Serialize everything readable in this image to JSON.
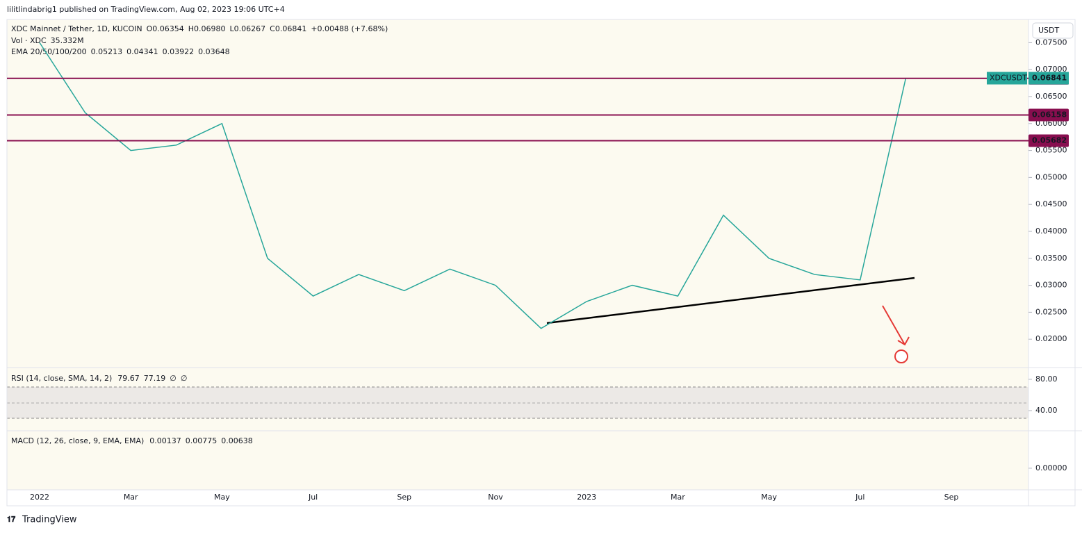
{
  "header": "lilitlindabrig1 published on TradingView.com, Aug 02, 2023 19:06 UTC+4",
  "legend": {
    "symbol": "XDC Mainnet / Tether, 1D, KUCOIN",
    "ohlc": [
      "O0.06354",
      "H0.06980",
      "L0.06267",
      "C0.06841"
    ],
    "change": "+0.00488 (+7.68%)",
    "volume_label": "Vol · XDC",
    "volume": "35.332M",
    "ema_label": "EMA 20/50/100/200",
    "ema_values": [
      {
        "text": "0.05213",
        "color": "#f23645"
      },
      {
        "text": "0.04341",
        "color": "#ff9800"
      },
      {
        "text": "0.03922",
        "color": "#00bcd4"
      },
      {
        "text": "0.03648",
        "color": "#2962ff"
      }
    ]
  },
  "currency": "USDT",
  "chart_data": {
    "type": "line",
    "categories": [
      "2022",
      null,
      "Mar",
      null,
      "May",
      null,
      "Jul",
      null,
      "Sep",
      null,
      "Nov",
      null,
      "2023",
      null,
      "Mar",
      null,
      "May",
      null,
      "Jul",
      null,
      "Sep"
    ],
    "series": [
      {
        "name": "XDCUSDT",
        "color": "#26a69a",
        "values": [
          0.075,
          0.062,
          0.055,
          0.056,
          0.06,
          0.035,
          0.028,
          0.032,
          0.029,
          0.033,
          0.03,
          0.022,
          0.027,
          0.03,
          0.028,
          0.043,
          0.035,
          0.032,
          0.031,
          0.06841,
          null
        ]
      }
    ],
    "last_price": 0.06841,
    "ylim": [
      0.015,
      0.0793
    ],
    "yticks": [
      {
        "value": 0.02,
        "label": "0.02000"
      },
      {
        "value": 0.025,
        "label": "0.02500"
      },
      {
        "value": 0.03,
        "label": "0.03000"
      },
      {
        "value": 0.035,
        "label": "0.03500"
      },
      {
        "value": 0.04,
        "label": "0.04000"
      },
      {
        "value": 0.045,
        "label": "0.04500"
      },
      {
        "value": 0.05,
        "label": "0.05000"
      },
      {
        "value": 0.055,
        "label": "0.05500"
      },
      {
        "value": 0.06,
        "label": "0.06000"
      },
      {
        "value": 0.065,
        "label": "0.06500"
      },
      {
        "value": 0.07,
        "label": "0.07000"
      },
      {
        "value": 0.075,
        "label": "0.07500"
      }
    ],
    "levels": [
      0.06838,
      0.06158,
      0.05682
    ],
    "level_color": "#880e4f"
  },
  "rsi": {
    "title": "RSI (14, close, SMA, 14, 2)",
    "values_text": [
      {
        "text": "79.67",
        "color": "#7e57c2"
      },
      {
        "text": "77.19",
        "color": "#f7c948"
      },
      {
        "text": "∅",
        "color": "#131722"
      },
      {
        "text": "∅",
        "color": "#131722"
      }
    ],
    "ylim": [
      14.2,
      92.4
    ],
    "yticks": [
      {
        "value": 80,
        "label": "80.00"
      },
      {
        "value": 40,
        "label": "40.00"
      }
    ]
  },
  "macd": {
    "title": "MACD (12, 26, close, 9, EMA, EMA)",
    "values_text": [
      {
        "text": "0.00137",
        "color": "#26a69a"
      },
      {
        "text": "0.00775",
        "color": "#2962ff"
      },
      {
        "text": "0.00638",
        "color": "#ff6d00"
      }
    ],
    "ylim": [
      -0.006,
      0.01
    ],
    "yticks": [
      {
        "value": 0,
        "label": "0.00000"
      }
    ]
  },
  "footer": "TradingView"
}
